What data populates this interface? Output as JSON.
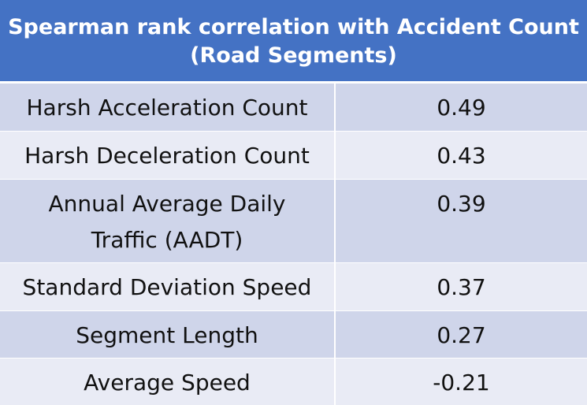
{
  "table": {
    "title_line1": "Spearman rank correlation with Accident Count",
    "title_line2": "(Road Segments)",
    "rows": [
      {
        "label": "Harsh Acceleration Count",
        "value": "0.49"
      },
      {
        "label": "Harsh Deceleration Count",
        "value": "0.43"
      },
      {
        "label_line1": "Annual Average Daily",
        "label_line2": "Traffic (AADT)",
        "value": "0.39"
      },
      {
        "label": "Standard Deviation Speed",
        "value": "0.37"
      },
      {
        "label": "Segment Length",
        "value": "0.27"
      },
      {
        "label": "Average Speed",
        "value": "-0.21"
      }
    ]
  },
  "colors": {
    "header_bg": "#4472c4",
    "row_dark": "#cfd5ea",
    "row_light": "#e9ebf5"
  }
}
